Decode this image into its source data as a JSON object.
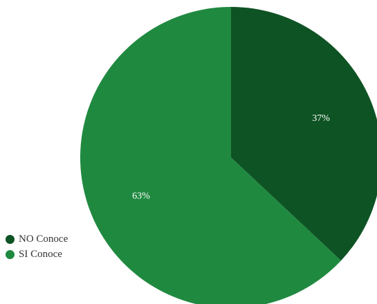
{
  "chart_data": {
    "type": "pie",
    "slices": [
      {
        "label": "NO Conoce",
        "value": 37,
        "display": "37%",
        "color": "#0e5324"
      },
      {
        "label": "SI Conoce",
        "value": 63,
        "display": "63%",
        "color": "#208940"
      }
    ],
    "legend_position": "bottom-left"
  }
}
